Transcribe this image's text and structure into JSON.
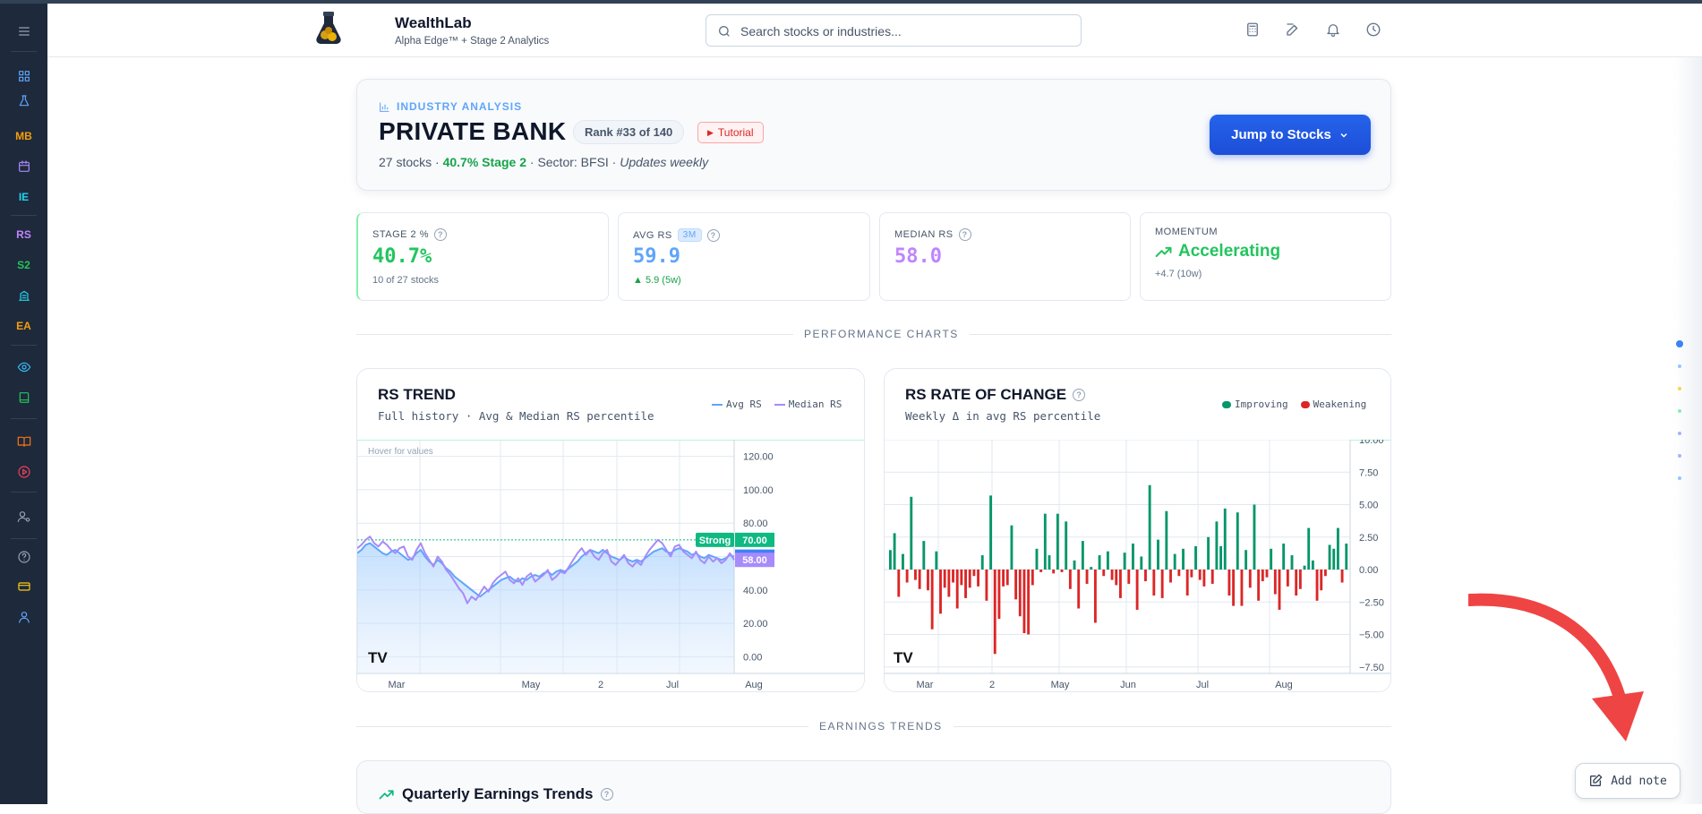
{
  "app": {
    "name": "WealthLab",
    "tagline": "Alpha Edge™ + Stage 2 Analytics"
  },
  "search": {
    "placeholder": "Search stocks or industries..."
  },
  "sidebar": {
    "items": [
      {
        "name": "menu-icon",
        "color": "#94a3b8"
      },
      {
        "name": "dashboard-icon",
        "color": "#60a5fa"
      },
      {
        "name": "flask-icon",
        "color": "#60a5fa"
      },
      {
        "label": "MB",
        "color": "#f59e0b"
      },
      {
        "name": "calendar-icon",
        "color": "#a78bfa"
      },
      {
        "label": "IE",
        "color": "#22d3ee"
      },
      {
        "label": "RS",
        "color": "#c084fc"
      },
      {
        "label": "S2",
        "color": "#22c55e"
      },
      {
        "name": "building-icon",
        "color": "#22d3ee"
      },
      {
        "label": "EA",
        "color": "#f59e0b"
      },
      {
        "name": "eye-icon",
        "color": "#38bdf8"
      },
      {
        "name": "book-icon",
        "color": "#22c55e"
      },
      {
        "name": "open-book-icon",
        "color": "#f97316"
      },
      {
        "name": "play-circle-icon",
        "color": "#f43f5e"
      },
      {
        "name": "user-settings-icon",
        "color": "#94a3b8"
      },
      {
        "name": "help-icon",
        "color": "#94a3b8"
      },
      {
        "name": "card-icon",
        "color": "#facc15"
      },
      {
        "name": "user-icon",
        "color": "#60a5fa"
      }
    ]
  },
  "industry": {
    "eyebrow": "INDUSTRY ANALYSIS",
    "title": "PRIVATE BANK",
    "rank": "Rank #33 of 140",
    "tutorial": "Tutorial",
    "stocks": "27 stocks",
    "stage2": "40.7% Stage 2",
    "sector": "Sector: BFSI",
    "updates": "Updates weekly",
    "jump_label": "Jump to Stocks"
  },
  "stats": {
    "stage2": {
      "label": "STAGE 2 %",
      "value": "40.7%",
      "sub": "10 of 27 stocks",
      "color": "#22c55e"
    },
    "avg_rs": {
      "label": "AVG RS",
      "badge": "3M",
      "value": "59.9",
      "sub": "▲ 5.9 (5w)",
      "color": "#60a5fa",
      "sub_color": "#16a34a"
    },
    "median_rs": {
      "label": "MEDIAN RS",
      "value": "58.0",
      "color": "#c084fc"
    },
    "momentum": {
      "label": "MOMENTUM",
      "value": "Accelerating",
      "sub": "+4.7 (10w)",
      "color": "#22c55e"
    }
  },
  "sections": {
    "performance": "PERFORMANCE CHARTS",
    "earnings": "EARNINGS TRENDS"
  },
  "rs_trend": {
    "title": "RS TREND",
    "subtitle": "Full history · Avg & Median RS percentile",
    "legend_avg": "Avg RS",
    "legend_median": "Median RS",
    "hover_hint": "Hover for values",
    "strong_label": "Strong",
    "avg_color": "#60a5fa",
    "median_color": "#a78bfa",
    "strong_color": "#10b981"
  },
  "rs_roc": {
    "title": "RS RATE OF CHANGE",
    "subtitle": "Weekly Δ in avg RS percentile",
    "legend_improving": "Improving",
    "legend_weakening": "Weakening",
    "improving_color": "#059669",
    "weakening_color": "#dc2626"
  },
  "earnings": {
    "title": "Quarterly Earnings Trends"
  },
  "add_note": {
    "label": "Add note"
  },
  "chart_data": [
    {
      "type": "line",
      "title": "RS TREND",
      "subtitle": "Full history · Avg & Median RS percentile",
      "x_ticks": [
        "Mar",
        "May",
        "2",
        "Jul",
        "Aug"
      ],
      "y_ticks": [
        0,
        20,
        40,
        60,
        80,
        100,
        120
      ],
      "ylim": [
        -10,
        130
      ],
      "threshold": {
        "label": "Strong",
        "value": 70
      },
      "last_values": {
        "avg": 59.93,
        "median": 58.0
      },
      "series": [
        {
          "name": "Avg RS",
          "color": "#60a5fa",
          "values": [
            62,
            64,
            67,
            68,
            66,
            64,
            62,
            61,
            63,
            64,
            62,
            60,
            58,
            59,
            62,
            64,
            60,
            57,
            55,
            58,
            56,
            53,
            51,
            48,
            46,
            44,
            42,
            40,
            38,
            36,
            38,
            40,
            42,
            44,
            46,
            47,
            48,
            46,
            45,
            47,
            46,
            48,
            49,
            48,
            50,
            51,
            49,
            51,
            52,
            51,
            53,
            55,
            57,
            60,
            62,
            64,
            63,
            62,
            64,
            62,
            60,
            59,
            58,
            60,
            58,
            57,
            58,
            57,
            59,
            61,
            63,
            64,
            65,
            63,
            62,
            64,
            65,
            64,
            63,
            61,
            62,
            60,
            59,
            61,
            60,
            59,
            58,
            59,
            61,
            60
          ]
        },
        {
          "name": "Median RS",
          "color": "#a78bfa",
          "values": [
            65,
            67,
            70,
            72,
            68,
            66,
            69,
            67,
            64,
            62,
            65,
            66,
            60,
            58,
            64,
            68,
            62,
            58,
            54,
            60,
            57,
            52,
            49,
            45,
            41,
            38,
            32,
            36,
            34,
            38,
            42,
            39,
            44,
            47,
            49,
            51,
            46,
            44,
            47,
            43,
            48,
            50,
            45,
            47,
            49,
            52,
            46,
            48,
            51,
            50,
            54,
            58,
            62,
            65,
            61,
            64,
            60,
            58,
            62,
            64,
            57,
            55,
            58,
            61,
            56,
            54,
            57,
            55,
            60,
            64,
            67,
            70,
            68,
            64,
            60,
            66,
            67,
            63,
            61,
            59,
            63,
            58,
            56,
            60,
            57,
            59,
            56,
            58,
            62,
            58
          ]
        }
      ]
    },
    {
      "type": "bar",
      "title": "RS RATE OF CHANGE",
      "subtitle": "Weekly Δ in avg RS percentile",
      "x_ticks": [
        "Mar",
        "2",
        "May",
        "Jun",
        "Jul",
        "Aug"
      ],
      "y_ticks": [
        -7.5,
        -5.0,
        -2.5,
        0.0,
        2.5,
        5.0,
        7.5,
        10.0
      ],
      "ylim": [
        -8,
        10
      ],
      "series": [
        {
          "name": "Weekly Δ",
          "values": [
            1.5,
            2.8,
            -2.1,
            1.2,
            -1.0,
            5.6,
            -0.8,
            -1.5,
            2.2,
            -1.6,
            -4.6,
            1.4,
            -3.4,
            -1.4,
            -2.1,
            -1.0,
            -3.0,
            -1.2,
            -2.2,
            -1.4,
            -0.5,
            -1.3,
            1.1,
            -2.4,
            5.7,
            -6.5,
            -3.8,
            -1.3,
            -1.2,
            3.4,
            -2.3,
            -3.6,
            -4.9,
            -5.0,
            -1.2,
            1.6,
            -0.2,
            4.3,
            1.1,
            -0.3,
            4.3,
            -0.2,
            3.7,
            -1.5,
            0.7,
            -3.0,
            2.2,
            -1.1,
            0.2,
            -4.1,
            1.1,
            -0.5,
            1.4,
            -0.8,
            -1.2,
            -2.2,
            1.3,
            -1.1,
            2.0,
            -3.1,
            1.0,
            -0.9,
            6.5,
            -2.0,
            2.3,
            -2.2,
            4.5,
            -1.0,
            1.2,
            -0.5,
            1.6,
            -2.0,
            -0.6,
            1.8,
            -0.8,
            -1.3,
            2.5,
            -1.1,
            3.7,
            1.8,
            4.7,
            -2.0,
            -2.8,
            4.4,
            -2.8,
            1.5,
            -1.4,
            5.0,
            -2.4,
            -0.9,
            -0.6,
            1.6,
            -1.9,
            -3.1,
            2.0,
            -1.3,
            1.1,
            -2.0,
            -1.5,
            0.3,
            3.2,
            0.7,
            -2.4,
            -1.6,
            -0.5,
            1.9,
            1.6,
            3.2,
            -1.0,
            2.0
          ]
        }
      ]
    }
  ]
}
